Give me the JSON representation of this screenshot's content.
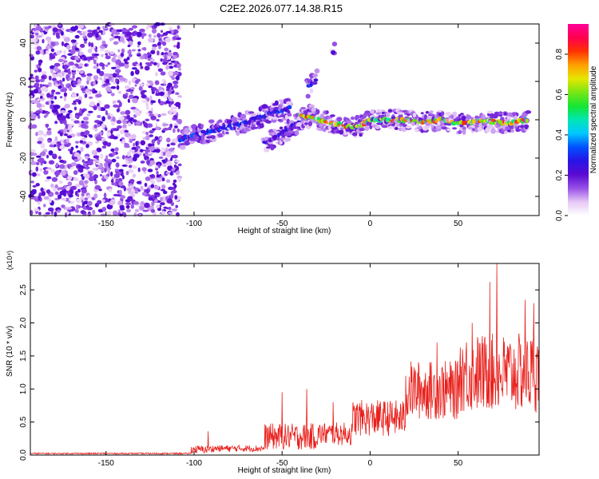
{
  "title": "C2E2.2026.077.14.38.R15",
  "colors": {
    "snr_line": "#e8201c",
    "colormap": [
      "#ffffff",
      "#e6c8f5",
      "#9650e6",
      "#5a0ad2",
      "#2814e6",
      "#0050ff",
      "#00c8ff",
      "#00e6b4",
      "#14e632",
      "#78e614",
      "#e6e600",
      "#ffa000",
      "#ff3200",
      "#ff0050",
      "#ff0096"
    ]
  },
  "chart_data": [
    {
      "type": "heatmap",
      "xlabel": "Height of straight line (km)",
      "ylabel": "Frequency (Hz)",
      "xlim": [
        -193,
        96
      ],
      "ylim": [
        -50,
        50
      ],
      "xticks": [
        -150,
        -100,
        -50,
        0,
        50
      ],
      "yticks": [
        -40,
        -20,
        0,
        20,
        40
      ],
      "colorbar": {
        "label": "Normalized spectral amplitude",
        "range": [
          0,
          0.95
        ],
        "ticks": [
          0.0,
          0.2,
          0.4,
          0.6,
          0.8
        ]
      },
      "noise_region": {
        "x_from": -193,
        "x_to": -108,
        "level": 0.15
      },
      "ridges": [
        {
          "x": [
            -108,
            -100,
            -90,
            -80,
            -70,
            -60,
            -50,
            -45
          ],
          "y": [
            -10,
            -8,
            -6,
            -4,
            -1,
            2,
            5,
            6
          ],
          "amp": 0.35
        },
        {
          "x": [
            -60,
            -55,
            -50,
            -45,
            -40,
            -35,
            -30
          ],
          "y": [
            -12,
            -10,
            -7,
            -4,
            -1,
            2,
            5
          ],
          "amp": 0.3
        },
        {
          "x": [
            -40,
            -35,
            -30,
            -25,
            -20,
            -15,
            -10,
            -5,
            0,
            5,
            10,
            20,
            30,
            40,
            50,
            60,
            70,
            80,
            90
          ],
          "y": [
            2,
            1,
            0,
            -1,
            -2,
            -3,
            -4,
            -3,
            0,
            0,
            0,
            0,
            -1,
            0,
            -2,
            -1,
            -1,
            -2,
            0
          ],
          "amp": 0.85
        },
        {
          "x": [
            -35,
            -30
          ],
          "y": [
            17,
            22
          ],
          "amp": 0.35
        },
        {
          "x": [
            -21
          ],
          "y": [
            35
          ],
          "amp": 0.3
        },
        {
          "x": [
            -125
          ],
          "y": [
            -13
          ],
          "amp": 0.25
        }
      ]
    },
    {
      "type": "line",
      "xlabel": "Height of straight line (km)",
      "ylabel": "SNR (10 * v/v)",
      "scale_label": "(x10⁴)",
      "xlim": [
        -193,
        96
      ],
      "ylim": [
        0,
        2.9
      ],
      "xticks": [
        -150,
        -100,
        -50,
        0,
        50
      ],
      "yticks": [
        0.0,
        0.5,
        1.0,
        1.5,
        2.0,
        2.5
      ],
      "segments": [
        {
          "x_from": -193,
          "x_to": -102,
          "base": 0.02,
          "noise": 0.02
        },
        {
          "x_from": -102,
          "x_to": -90,
          "base": 0.06,
          "noise": 0.12
        },
        {
          "x_from": -90,
          "x_to": -60,
          "base": 0.08,
          "noise": 0.1
        },
        {
          "x_from": -60,
          "x_to": -30,
          "base": 0.2,
          "noise": 0.4
        },
        {
          "x_from": -30,
          "x_to": -10,
          "base": 0.25,
          "noise": 0.35
        },
        {
          "x_from": -10,
          "x_to": 20,
          "base": 0.45,
          "noise": 0.55
        },
        {
          "x_from": 20,
          "x_to": 50,
          "base": 0.8,
          "noise": 0.9
        },
        {
          "x_from": 50,
          "x_to": 96,
          "base": 1.0,
          "noise": 1.2
        }
      ],
      "peaks": [
        {
          "x": -92,
          "y": 0.36
        },
        {
          "x": -50,
          "y": 0.95
        },
        {
          "x": -36,
          "y": 1.0
        },
        {
          "x": -21,
          "y": 0.8
        },
        {
          "x": 38,
          "y": 1.7
        },
        {
          "x": 58,
          "y": 2.0
        },
        {
          "x": 68,
          "y": 2.62
        },
        {
          "x": 72,
          "y": 2.9
        },
        {
          "x": 88,
          "y": 2.35
        },
        {
          "x": 93,
          "y": 2.3
        }
      ]
    }
  ]
}
